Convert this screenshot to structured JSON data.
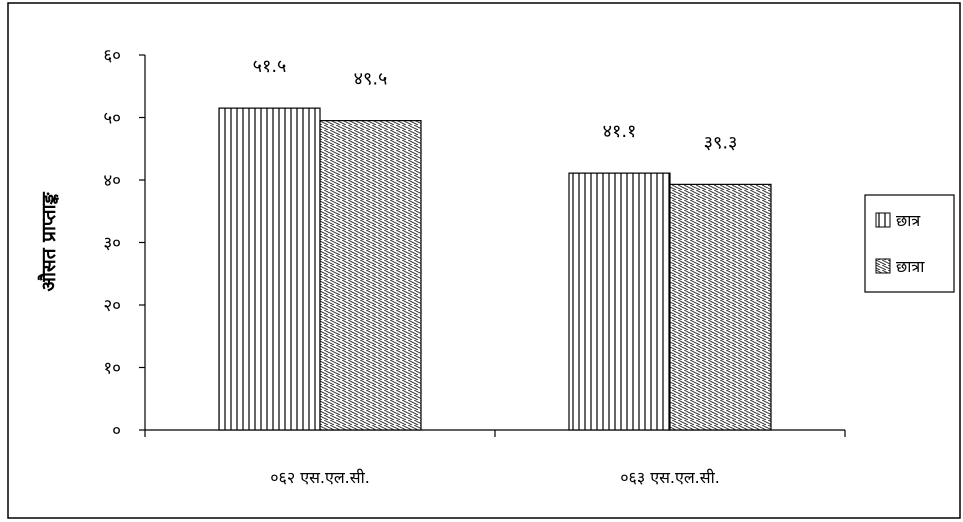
{
  "chart_data": {
    "type": "bar",
    "title": "",
    "xlabel": "",
    "ylabel": "औसत प्राप्ताङ्क",
    "categories": [
      "०६२ एस.एल.सी.",
      "०६३ एस.एल.सी."
    ],
    "series": [
      {
        "name": "छात्र",
        "values": [
          51.5,
          41.1
        ],
        "value_labels": [
          "५१.५",
          "४१.१"
        ],
        "pattern": "vertical-lines"
      },
      {
        "name": "छात्रा",
        "values": [
          49.5,
          39.3
        ],
        "value_labels": [
          "४९.५",
          "३९.३"
        ],
        "pattern": "diagonal-hatch"
      }
    ],
    "ylim": [
      0,
      60
    ],
    "yticks": [
      0,
      10,
      20,
      30,
      40,
      50,
      60
    ],
    "ytick_labels": [
      "०",
      "१०",
      "२०",
      "३०",
      "४०",
      "५०",
      "६०"
    ],
    "grid": false,
    "legend": "right"
  }
}
